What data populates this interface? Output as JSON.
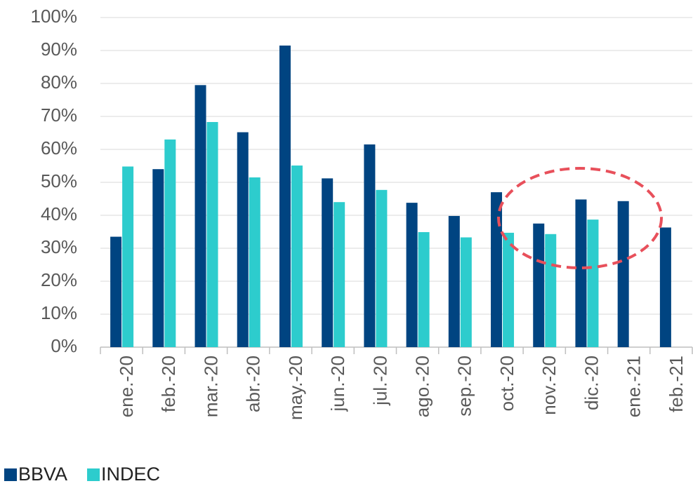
{
  "chart_data": {
    "type": "bar",
    "categories": [
      "ene.-20",
      "feb.-20",
      "mar.-20",
      "abr.-20",
      "may.-20",
      "jun.-20",
      "jul.-20",
      "ago.-20",
      "sep.-20",
      "oct.-20",
      "nov.-20",
      "dic.-20",
      "ene.-21",
      "feb.-21"
    ],
    "series": [
      {
        "name": "BBVA",
        "color": "#004481",
        "values": [
          33.5,
          54,
          79.5,
          65.2,
          91.5,
          51.2,
          61.5,
          43.8,
          39.8,
          47,
          37.5,
          44.8,
          44.3,
          36.3
        ]
      },
      {
        "name": "INDEC",
        "color": "#2dcccd",
        "values": [
          54.8,
          63,
          68.3,
          51.5,
          55.1,
          44,
          47.7,
          34.9,
          33.3,
          34.7,
          34.3,
          38.7,
          null,
          null
        ]
      }
    ],
    "ylim": [
      0,
      100
    ],
    "yticks": [
      {
        "value": 0,
        "label": "0%"
      },
      {
        "value": 10,
        "label": "10%"
      },
      {
        "value": 20,
        "label": "20%"
      },
      {
        "value": 30,
        "label": "30%"
      },
      {
        "value": 40,
        "label": "40%"
      },
      {
        "value": 50,
        "label": "50%"
      },
      {
        "value": 60,
        "label": "60%"
      },
      {
        "value": 70,
        "label": "70%"
      },
      {
        "value": 80,
        "label": "80%"
      },
      {
        "value": 90,
        "label": "90%"
      },
      {
        "value": 100,
        "label": "100%"
      }
    ],
    "grid": true,
    "legend": "bottom-left"
  }
}
